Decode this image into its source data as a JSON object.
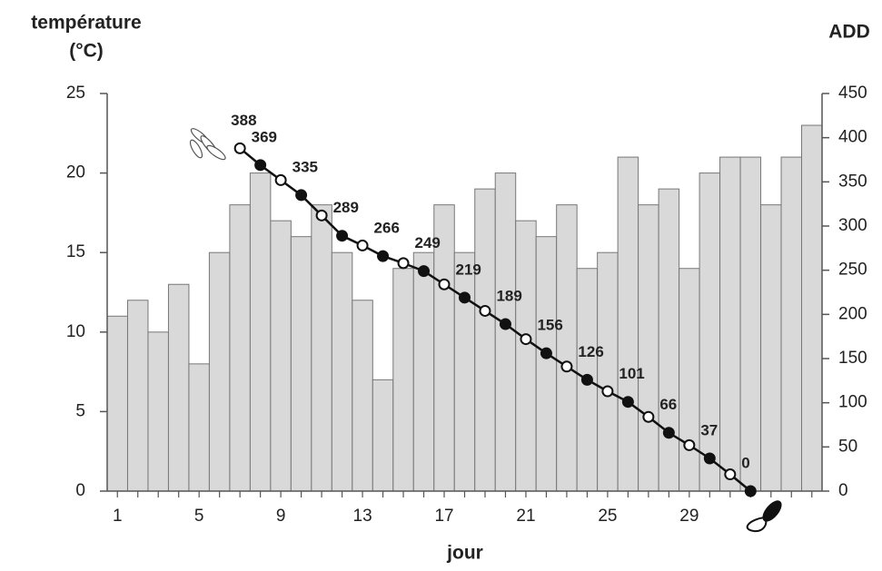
{
  "chart_data": {
    "type": "bar_line",
    "ylabel_lines": [
      "température",
      "(°C)"
    ],
    "y2label": "ADD",
    "xlabel": "jour",
    "categories": [
      1,
      null,
      null,
      null,
      5,
      null,
      null,
      null,
      9,
      null,
      null,
      null,
      13,
      null,
      null,
      null,
      17,
      null,
      null,
      null,
      21,
      null,
      null,
      null,
      25,
      null,
      null,
      null,
      29,
      null,
      null,
      null,
      null,
      null,
      null
    ],
    "series": [
      {
        "kind": "bar",
        "color": "#d9d9d9",
        "values": [
          11,
          12,
          10,
          13,
          8,
          15,
          18,
          20,
          17,
          16,
          18,
          15,
          12,
          7,
          14,
          15,
          18,
          15,
          19,
          20,
          17,
          16,
          18,
          14,
          15,
          21,
          18,
          19,
          14,
          20,
          21,
          21,
          18,
          21,
          23
        ]
      },
      {
        "kind": "line",
        "axis": "y2",
        "color": "#111111",
        "values": [
          null,
          null,
          null,
          null,
          null,
          null,
          388,
          369,
          352,
          335,
          312,
          289,
          278,
          266,
          258,
          249,
          234,
          219,
          204,
          189,
          172,
          156,
          141,
          126,
          113,
          101,
          84,
          66,
          52,
          37,
          19,
          0,
          null,
          null,
          null
        ],
        "value_labels": [
          null,
          null,
          null,
          null,
          null,
          null,
          "388",
          "369",
          null,
          "335",
          null,
          "289",
          null,
          "266",
          null,
          "249",
          null,
          "219",
          null,
          "189",
          null,
          "156",
          null,
          "126",
          null,
          "101",
          null,
          "66",
          null,
          "37",
          null,
          "0",
          null,
          null,
          null
        ]
      }
    ],
    "ylim": [
      0,
      25
    ],
    "yticks": [
      0,
      5,
      10,
      15,
      20,
      25
    ],
    "y2lim": [
      0,
      450
    ],
    "y2ticks": [
      0,
      50,
      100,
      150,
      200,
      250,
      300,
      350,
      400,
      450
    ]
  }
}
